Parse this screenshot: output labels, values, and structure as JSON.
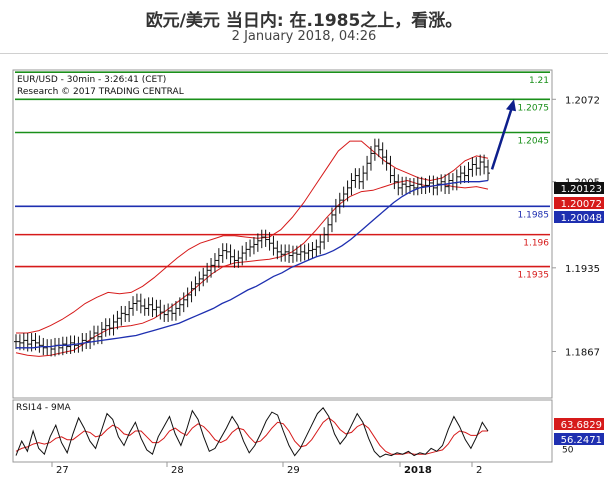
{
  "header": {
    "title": "欧元/美元 当日内: 在.1985之上，看涨。",
    "subtitle": "2 January 2018, 04:26"
  },
  "chart_data": [
    {
      "type": "candlestick",
      "instrument_label": "EUR/USD - 30min - 3:26:41 (CET)",
      "copyright": "Research © 2017 TRADING CENTRAL",
      "ylim": [
        1.183,
        1.2095
      ],
      "y_ticks": [
        {
          "label": "1.2072",
          "value": 1.2072
        },
        {
          "label": "1.2005",
          "value": 1.2005
        },
        {
          "label": "1.1935",
          "value": 1.1935
        },
        {
          "label": "1.1867",
          "value": 1.1867
        }
      ],
      "x_ticks": [
        "27",
        "28",
        "29",
        "2018",
        "2"
      ],
      "levels": [
        {
          "label": "1.21",
          "value": 1.2094,
          "color": "#1a8f1a"
        },
        {
          "label": "1.2075",
          "value": 1.2072,
          "color": "#1a8f1a"
        },
        {
          "label": "1.2045",
          "value": 1.2045,
          "color": "#1a8f1a"
        },
        {
          "label": "1.1985",
          "value": 1.1985,
          "color": "#1e2fb0"
        },
        {
          "label": "1.196",
          "value": 1.1962,
          "color": "#d61a1a"
        },
        {
          "label": "1.1935",
          "value": 1.1936,
          "color": "#d61a1a"
        }
      ],
      "price_tags": [
        {
          "label": "1.20123",
          "value": 1.20123,
          "bg": "#111111"
        },
        {
          "label": "1.20072",
          "value": 1.20072,
          "bg": "#d61a1a"
        },
        {
          "label": "1.20048",
          "value": 1.20048,
          "bg": "#1e2fb0"
        }
      ],
      "close_series": [
        1.1875,
        1.1874,
        1.1876,
        1.1873,
        1.1876,
        1.1874,
        1.1872,
        1.187,
        1.1871,
        1.1869,
        1.1872,
        1.187,
        1.1873,
        1.1871,
        1.1874,
        1.1872,
        1.1873,
        1.1876,
        1.1875,
        1.1878,
        1.1882,
        1.1879,
        1.1885,
        1.1888,
        1.1886,
        1.1891,
        1.1894,
        1.1898,
        1.1897,
        1.1902,
        1.1906,
        1.1908,
        1.1904,
        1.1902,
        1.1905,
        1.1901,
        1.1903,
        1.1899,
        1.1897,
        1.19,
        1.1898,
        1.1902,
        1.1905,
        1.1909,
        1.1913,
        1.1918,
        1.1922,
        1.1926,
        1.1929,
        1.1933,
        1.1937,
        1.1941,
        1.1945,
        1.1949,
        1.1948,
        1.1944,
        1.1941,
        1.1943,
        1.1947,
        1.195,
        1.1952,
        1.1954,
        1.1957,
        1.196,
        1.1958,
        1.1955,
        1.1951,
        1.1948,
        1.1946,
        1.1948,
        1.1945,
        1.1947,
        1.1946,
        1.1948,
        1.1947,
        1.1949,
        1.195,
        1.1952,
        1.1956,
        1.1962,
        1.197,
        1.1978,
        1.1985,
        1.199,
        1.1995,
        1.2,
        1.2006,
        1.201,
        1.2005,
        1.2012,
        1.202,
        1.2028,
        1.2034,
        1.2031,
        1.2025,
        1.202,
        1.201,
        1.2005,
        1.2,
        1.2003,
        1.2001,
        1.2002,
        1.2,
        1.2003,
        1.2001,
        1.2002,
        1.2004,
        1.2,
        1.2003,
        1.2005,
        1.2001,
        1.2006,
        1.2004,
        1.2009,
        1.2012,
        1.201,
        1.2015,
        1.2019,
        1.2016,
        1.2021,
        1.2017,
        1.2012
      ],
      "ma_series": [
        1.187,
        1.187,
        1.187,
        1.1871,
        1.1871,
        1.1872,
        1.1872,
        1.1873,
        1.1874,
        1.1875,
        1.1876,
        1.1877,
        1.1878,
        1.1879,
        1.188,
        1.1882,
        1.1884,
        1.1886,
        1.1888,
        1.189,
        1.1893,
        1.1896,
        1.1899,
        1.1902,
        1.1906,
        1.1909,
        1.1913,
        1.1917,
        1.192,
        1.1924,
        1.1928,
        1.1931,
        1.1935,
        1.1938,
        1.1941,
        1.1944,
        1.1946,
        1.1949,
        1.1953,
        1.1958,
        1.1964,
        1.197,
        1.1976,
        1.1982,
        1.1988,
        1.1993,
        1.1997,
        1.2,
        1.2001,
        1.2002,
        1.2003,
        1.2004,
        1.2005,
        1.2005,
        1.2005,
        1.2006
      ],
      "band_upper": [
        1.1882,
        1.1882,
        1.1884,
        1.1888,
        1.1893,
        1.1899,
        1.1906,
        1.1911,
        1.1915,
        1.1914,
        1.1915,
        1.192,
        1.1927,
        1.1935,
        1.1943,
        1.195,
        1.1955,
        1.1958,
        1.1961,
        1.1961,
        1.196,
        1.1959,
        1.196,
        1.1966,
        1.1976,
        1.1988,
        1.2002,
        1.2016,
        1.203,
        1.2038,
        1.2038,
        1.203,
        1.2022,
        1.2016,
        1.2012,
        1.2008,
        1.2006,
        1.2008,
        1.2014,
        1.2022,
        1.2026,
        1.2024
      ],
      "band_lower": [
        1.1866,
        1.1864,
        1.1863,
        1.1864,
        1.1866,
        1.1868,
        1.1874,
        1.188,
        1.1885,
        1.1887,
        1.1888,
        1.189,
        1.1894,
        1.19,
        1.1907,
        1.1914,
        1.1922,
        1.193,
        1.1936,
        1.1939,
        1.194,
        1.1941,
        1.1942,
        1.1944,
        1.1948,
        1.1955,
        1.1965,
        1.1976,
        1.1986,
        1.1993,
        1.1997,
        1.1998,
        1.2001,
        1.2004,
        1.2006,
        1.2003,
        1.2001,
        1.2003,
        1.2001,
        1.2,
        1.2001,
        1.1999
      ],
      "forecast_arrow": {
        "from": 1.2015,
        "to": 1.2072
      }
    },
    {
      "type": "line",
      "label": "RSI14 - 9MA",
      "ylim": [
        42,
        82
      ],
      "y_ticks": [
        {
          "label": "50",
          "value": 50
        }
      ],
      "values": [
        45,
        55,
        48,
        62,
        50,
        46,
        58,
        66,
        54,
        47,
        60,
        71,
        64,
        55,
        50,
        62,
        74,
        70,
        58,
        52,
        61,
        68,
        57,
        49,
        46,
        58,
        65,
        72,
        60,
        52,
        63,
        76,
        70,
        58,
        48,
        50,
        57,
        64,
        72,
        66,
        55,
        47,
        52,
        60,
        69,
        75,
        73,
        62,
        52,
        45,
        50,
        58,
        66,
        74,
        78,
        72,
        60,
        53,
        58,
        66,
        74,
        68,
        57,
        48,
        44,
        46,
        45,
        47,
        46,
        48,
        45,
        47,
        46,
        50,
        48,
        52,
        63,
        72,
        65,
        56,
        50,
        58,
        68,
        62
      ],
      "ma_values": [
        48,
        50,
        51,
        53,
        54,
        53,
        54,
        57,
        58,
        56,
        56,
        59,
        62,
        61,
        58,
        59,
        63,
        66,
        64,
        60,
        59,
        62,
        62,
        58,
        54,
        54,
        57,
        62,
        64,
        61,
        59,
        64,
        67,
        65,
        61,
        56,
        54,
        56,
        61,
        64,
        63,
        58,
        54,
        55,
        59,
        64,
        68,
        67,
        62,
        55,
        51,
        52,
        56,
        62,
        68,
        71,
        68,
        63,
        60,
        61,
        65,
        67,
        64,
        58,
        52,
        48,
        46,
        46,
        46,
        47,
        46,
        46,
        46,
        47,
        48,
        49,
        53,
        59,
        62,
        61,
        59,
        59,
        62,
        62
      ],
      "value_tags": [
        {
          "label": "63.6829",
          "value": 63.6829,
          "bg": "#d61a1a"
        },
        {
          "label": "56.2471",
          "value": 56.2471,
          "bg": "#1e2fb0"
        }
      ]
    }
  ]
}
